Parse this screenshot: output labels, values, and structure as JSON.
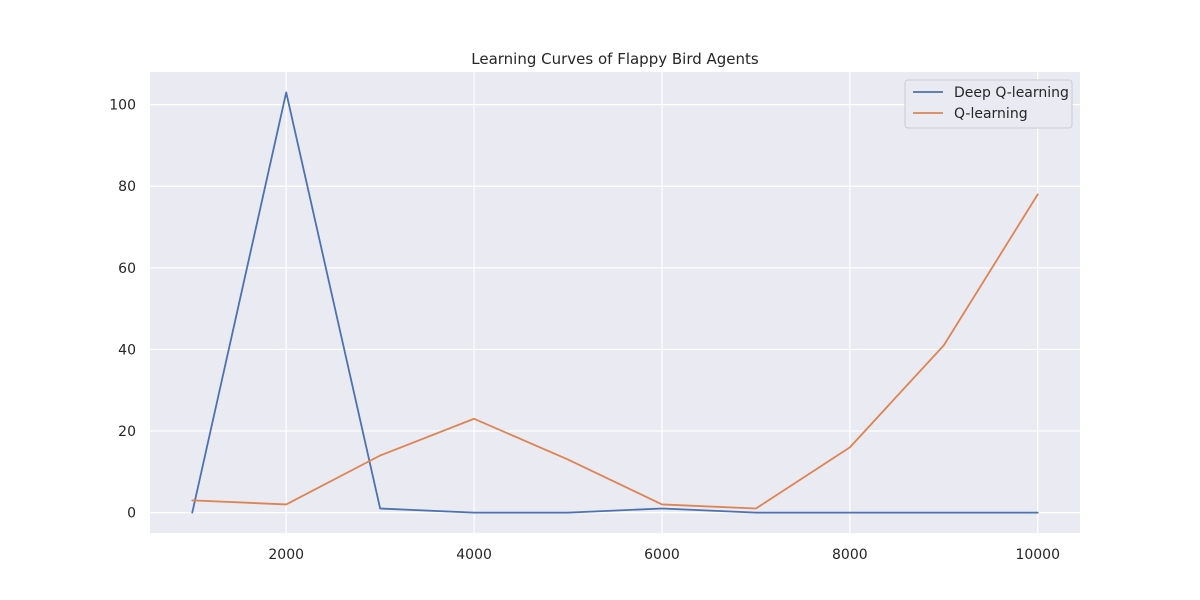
{
  "chart_data": {
    "type": "line",
    "title": "Learning Curves of Flappy Bird Agents",
    "xlabel": "",
    "ylabel": "",
    "x": [
      1000,
      2000,
      3000,
      4000,
      5000,
      6000,
      7000,
      8000,
      9000,
      10000
    ],
    "xlim": [
      550,
      10450
    ],
    "ylim": [
      -5,
      108
    ],
    "xticks": [
      2000,
      4000,
      6000,
      8000,
      10000
    ],
    "yticks": [
      0,
      20,
      40,
      60,
      80,
      100
    ],
    "grid": true,
    "legend_position": "top-right",
    "series": [
      {
        "name": "Deep Q-learning",
        "color": "#4c72b0",
        "values": [
          0,
          103,
          1,
          0,
          0,
          1,
          0,
          0,
          0,
          0
        ]
      },
      {
        "name": "Q-learning",
        "color": "#dd8452",
        "values": [
          3,
          2,
          14,
          23,
          13,
          2,
          1,
          16,
          41,
          78
        ]
      }
    ],
    "colors": {
      "plot_background": "#eaeaf2",
      "grid": "#ffffff",
      "text": "#262626"
    }
  }
}
